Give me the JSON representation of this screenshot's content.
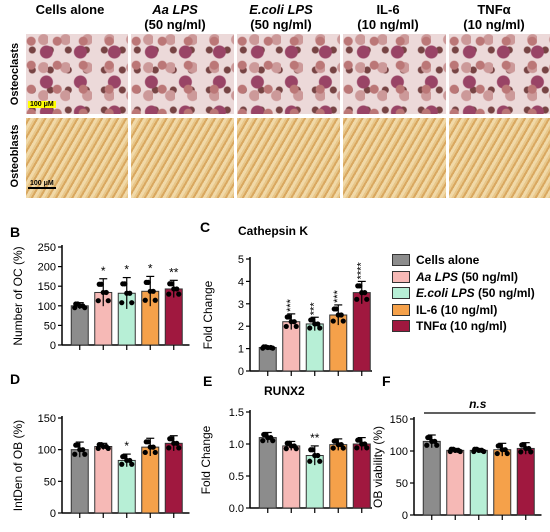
{
  "micrographs": {
    "columns": [
      {
        "label": "Cells alone",
        "italic_part": "",
        "rest": "Cells alone",
        "line2": ""
      },
      {
        "label": "Aa LPS",
        "italic_part": "Aa LPS",
        "rest": "",
        "line2": "(50 ng/ml)"
      },
      {
        "label": "E.coli LPS",
        "italic_part": "E.coli LPS",
        "rest": "",
        "line2": "(50 ng/ml)"
      },
      {
        "label": "IL-6",
        "italic_part": "",
        "rest": "IL-6",
        "line2": "(10 ng/ml)"
      },
      {
        "label": "TNFα",
        "italic_part": "",
        "rest": "TNFα",
        "line2": "(10 ng/ml)"
      }
    ],
    "rows": [
      "Osteoclasts",
      "Osteoblasts"
    ],
    "scale_bar_oc": "100 μM",
    "scale_bar_ob": "100 μM"
  },
  "legend": [
    {
      "italic": "",
      "text": "Cells alone",
      "color": "#8c8c8c"
    },
    {
      "italic": "Aa LPS",
      "text": " (50 ng/ml)",
      "color": "#f6b9b6"
    },
    {
      "italic": "E.coli LPS",
      "text": " (50 ng/ml)",
      "color": "#b7efd6"
    },
    {
      "italic": "",
      "text": "IL-6 (10 ng/ml)",
      "color": "#f5a14a"
    },
    {
      "italic": "",
      "text": "TNFα (10 ng/ml)",
      "color": "#a0183f"
    }
  ],
  "chart_data": [
    {
      "panel": "B",
      "type": "bar",
      "title": "",
      "ylabel": "Number of OC (%)",
      "ylim": [
        0,
        250
      ],
      "yticks": [
        0,
        50,
        100,
        150,
        200,
        250
      ],
      "values": [
        100,
        134,
        132,
        137,
        143
      ],
      "errors": [
        8,
        35,
        40,
        38,
        22
      ],
      "stars": [
        "",
        "*",
        "*",
        "*",
        "**"
      ]
    },
    {
      "panel": "C",
      "type": "bar",
      "title": "Cathepsin K",
      "ylabel": "Fold Change",
      "ylim": [
        0,
        5
      ],
      "yticks": [
        0,
        1,
        2,
        3,
        4,
        5
      ],
      "values": [
        1.05,
        2.2,
        2.1,
        2.5,
        3.5
      ],
      "errors": [
        0.05,
        0.35,
        0.3,
        0.45,
        0.5
      ],
      "stars": [
        "",
        "***",
        "***",
        "***",
        "****"
      ]
    },
    {
      "panel": "D",
      "type": "bar",
      "title": "",
      "ylabel": "IntDen of OB (%)",
      "ylim": [
        0,
        150
      ],
      "yticks": [
        0,
        50,
        100,
        150
      ],
      "values": [
        100,
        105,
        83,
        104,
        110
      ],
      "errors": [
        12,
        5,
        10,
        14,
        12
      ],
      "stars": [
        "",
        "",
        "*",
        "",
        ""
      ]
    },
    {
      "panel": "E",
      "type": "bar",
      "title": "RUNX2",
      "ylabel": "Fold Change",
      "ylim": [
        0,
        1.5
      ],
      "yticks": [
        0.0,
        0.5,
        1.0,
        1.5
      ],
      "values": [
        1.1,
        0.97,
        0.82,
        0.99,
        1.0
      ],
      "errors": [
        0.08,
        0.07,
        0.15,
        0.09,
        0.1
      ],
      "stars": [
        "",
        "",
        "**",
        "",
        ""
      ]
    },
    {
      "panel": "F",
      "type": "bar",
      "title": "",
      "ylabel": "OB viability (%)",
      "ylim": [
        0,
        150
      ],
      "yticks": [
        0,
        50,
        100,
        150
      ],
      "values": [
        115,
        101,
        101,
        102,
        104
      ],
      "errors": [
        10,
        3,
        3,
        10,
        9
      ],
      "stars": [
        "",
        "",
        "",
        "",
        ""
      ],
      "bracket_label": "n.s"
    }
  ]
}
